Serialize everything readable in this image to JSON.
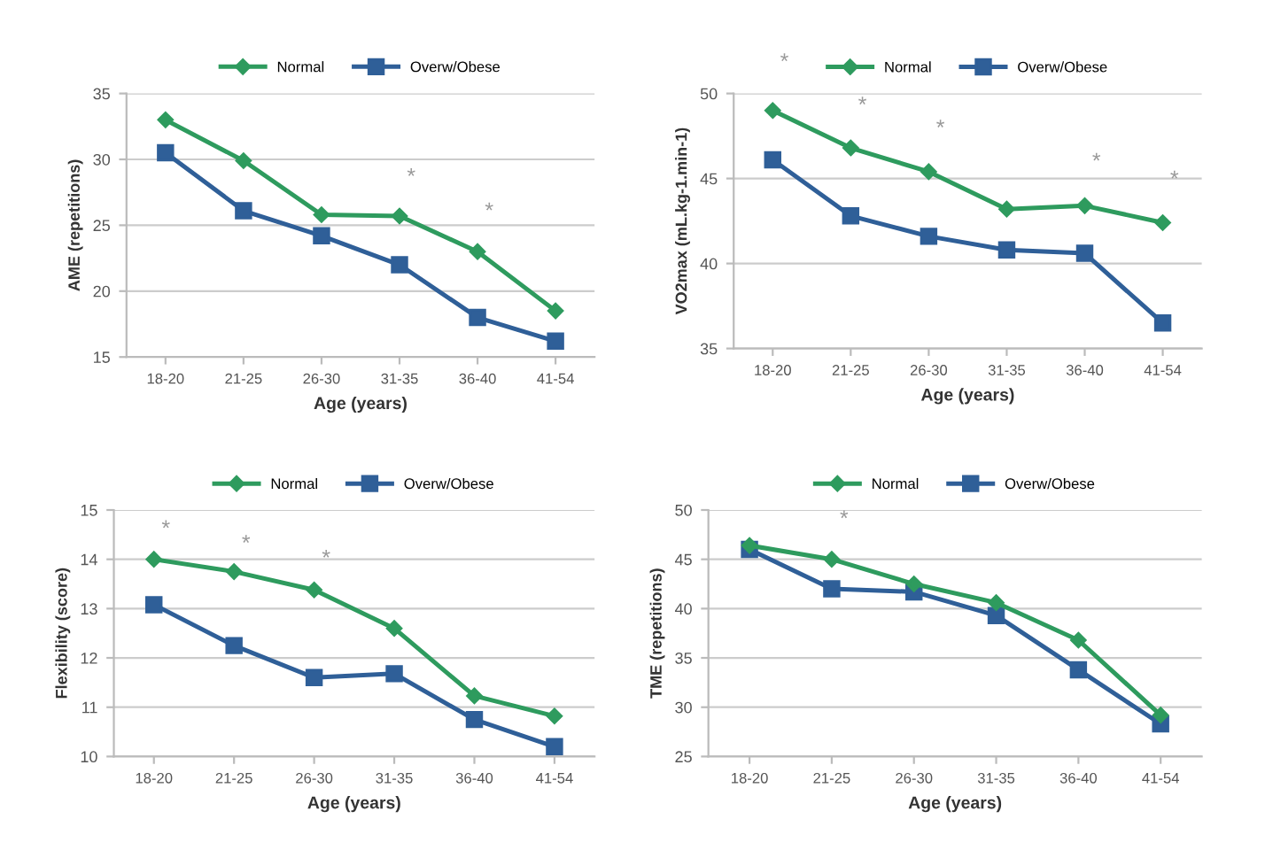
{
  "chart_data": [
    {
      "type": "line",
      "xlabel": "Age (years)",
      "ylabel": "AME (repetitions)",
      "categories": [
        "18-20",
        "21-25",
        "26-30",
        "31-35",
        "36-40",
        "41-54"
      ],
      "ylim": [
        15,
        35
      ],
      "yticks": [
        15,
        20,
        25,
        30,
        35
      ],
      "grid": "y",
      "legend": "top",
      "series": [
        {
          "name": "Normal",
          "color": "#2e9b5e",
          "marker": "diamond",
          "values": [
            33,
            29.9,
            25.8,
            25.7,
            23,
            18.5
          ]
        },
        {
          "name": "Overw/Obese",
          "color": "#2f5f98",
          "marker": "square",
          "values": [
            30.5,
            26.1,
            24.2,
            22,
            18,
            16.2
          ]
        }
      ],
      "annotations": [
        "*",
        "*"
      ]
    },
    {
      "type": "line",
      "xlabel": "Age (years)",
      "ylabel": "VO2max (mL.kg-1.min-1)",
      "categories": [
        "18-20",
        "21-25",
        "26-30",
        "31-35",
        "36-40",
        "41-54"
      ],
      "ylim": [
        35,
        50
      ],
      "yticks": [
        35,
        40,
        45,
        50
      ],
      "grid": "y",
      "legend": "top",
      "series": [
        {
          "name": "Normal",
          "color": "#2e9b5e",
          "marker": "diamond",
          "values": [
            49,
            46.8,
            45.4,
            43.2,
            43.4,
            42.4
          ]
        },
        {
          "name": "Overw/Obese",
          "color": "#2f5f98",
          "marker": "square",
          "values": [
            46.1,
            42.8,
            41.6,
            40.8,
            40.6,
            36.5
          ]
        }
      ],
      "annotations": [
        "*",
        "*",
        "*",
        "*",
        "*"
      ]
    },
    {
      "type": "line",
      "xlabel": "Age (years)",
      "ylabel": "Flexibility (score)",
      "categories": [
        "18-20",
        "21-25",
        "26-30",
        "31-35",
        "36-40",
        "41-54"
      ],
      "ylim": [
        10,
        15
      ],
      "yticks": [
        10,
        11,
        12,
        13,
        14,
        15
      ],
      "grid": "y",
      "legend": "top",
      "series": [
        {
          "name": "Normal",
          "color": "#2e9b5e",
          "marker": "diamond",
          "values": [
            14,
            13.75,
            13.38,
            12.6,
            11.23,
            10.82
          ]
        },
        {
          "name": "Overw/Obese",
          "color": "#2f5f98",
          "marker": "square",
          "values": [
            13.08,
            12.25,
            11.6,
            11.68,
            10.75,
            10.2
          ]
        }
      ],
      "annotations": [
        "*",
        "*",
        "*"
      ]
    },
    {
      "type": "line",
      "xlabel": "Age (years)",
      "ylabel": "TME (repetitions)",
      "categories": [
        "18-20",
        "21-25",
        "26-30",
        "31-35",
        "36-40",
        "41-54"
      ],
      "ylim": [
        25,
        50
      ],
      "yticks": [
        25,
        30,
        35,
        40,
        45,
        50
      ],
      "grid": "y",
      "legend": "top",
      "series": [
        {
          "name": "Normal",
          "color": "#2e9b5e",
          "marker": "diamond",
          "values": [
            46.4,
            45,
            42.5,
            40.6,
            36.8,
            29.2
          ]
        },
        {
          "name": "Overw/Obese",
          "color": "#2f5f98",
          "marker": "square",
          "values": [
            46,
            42,
            41.7,
            39.3,
            33.8,
            28.3
          ]
        }
      ],
      "annotations": [
        "*"
      ]
    }
  ]
}
